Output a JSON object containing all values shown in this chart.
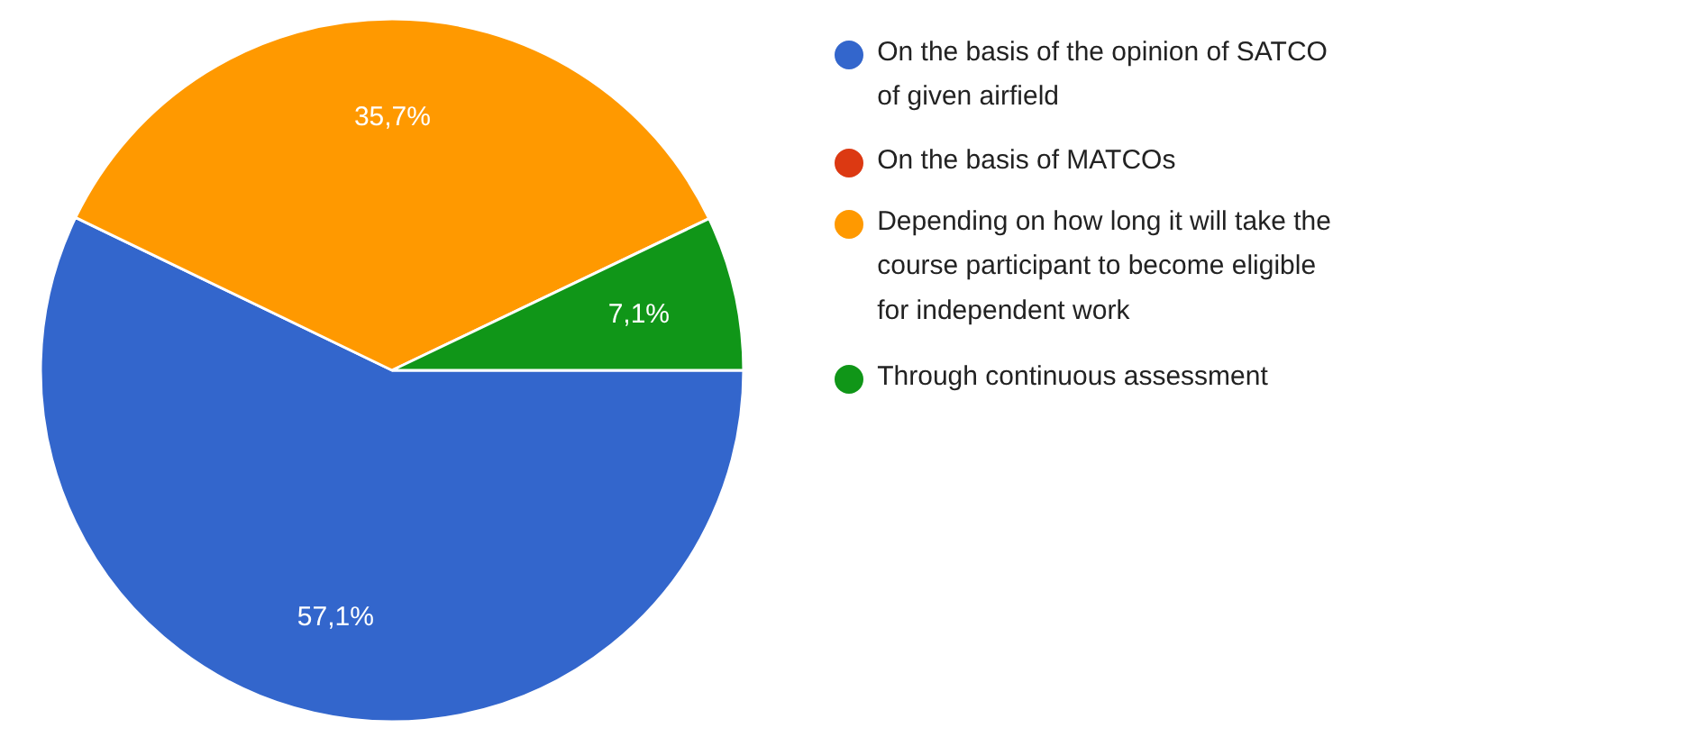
{
  "chart_data": {
    "type": "pie",
    "categories": [
      "On the basis of the opinion of SATCO of given airfield",
      "On the basis of MATCOs",
      "Depending on how long it will take the course participant to become eligible for independent work",
      "Through continuous assessment"
    ],
    "values": [
      57.1,
      0,
      35.7,
      7.1
    ],
    "colors": [
      "#3366cc",
      "#dc3912",
      "#ff9900",
      "#109618"
    ],
    "value_labels": [
      "57,1%",
      null,
      "35,7%",
      "7,1%"
    ],
    "legend": "right"
  }
}
